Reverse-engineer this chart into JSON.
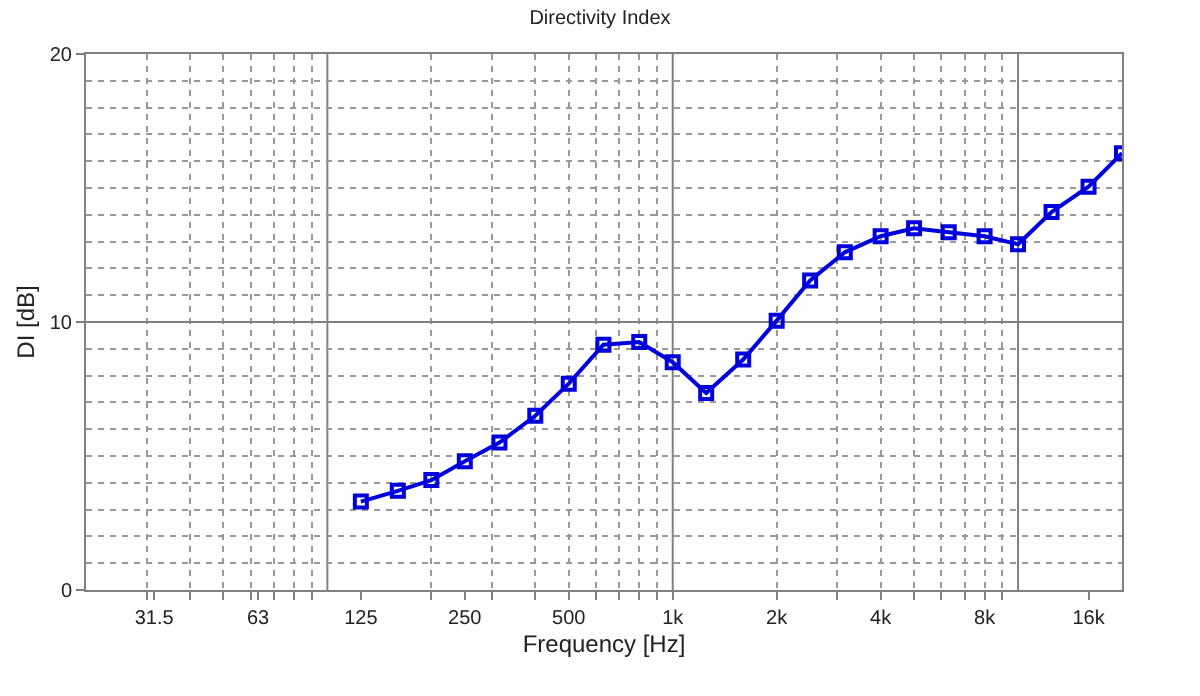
{
  "chart_data": {
    "type": "line",
    "title": "Directivity Index",
    "xlabel": "Frequency [Hz]",
    "ylabel": "DI [dB]",
    "log": "x",
    "grid": true,
    "marker": "square",
    "line_style": "solid",
    "xlim": [
      20,
      20000
    ],
    "xticks": [
      31.5,
      63,
      125,
      250,
      500,
      {
        "value": 1000,
        "label": "1k"
      },
      {
        "value": 2000,
        "label": "2k"
      },
      {
        "value": 4000,
        "label": "4k"
      },
      {
        "value": 8000,
        "label": "8k"
      },
      {
        "value": 16000,
        "label": "16k"
      }
    ],
    "ylim": [
      0,
      20
    ],
    "yticks": [
      0,
      10,
      20
    ],
    "x": [
      125,
      160,
      200,
      250,
      315,
      400,
      500,
      630,
      800,
      1000,
      1250,
      1600,
      2000,
      2500,
      3150,
      4000,
      5000,
      6300,
      8000,
      10000,
      12500,
      16000,
      20000
    ],
    "series": [
      {
        "color": "#0000dd",
        "values": [
          3.3,
          3.7,
          4.1,
          4.8,
          5.5,
          6.5,
          7.7,
          9.15,
          9.25,
          8.5,
          7.35,
          8.6,
          10.05,
          11.55,
          12.6,
          13.2,
          13.5,
          13.35,
          13.2,
          12.9,
          14.1,
          15.05,
          16.3
        ]
      }
    ]
  }
}
